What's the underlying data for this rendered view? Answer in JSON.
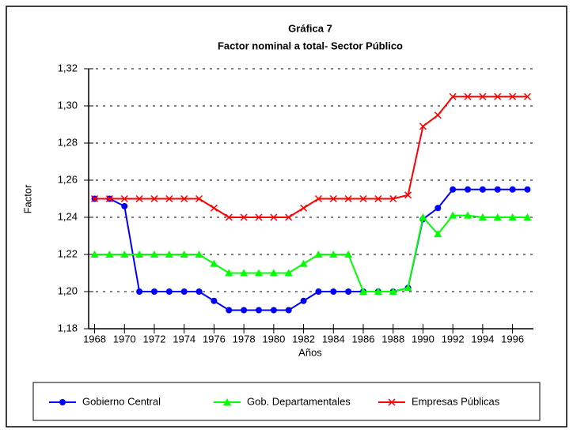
{
  "chart_data": {
    "type": "line",
    "title": "Gráfica 7",
    "subtitle": "Factor nominal a total- Sector Público",
    "y_label": "Factor",
    "x_label": "Años",
    "x": [
      1968,
      1969,
      1970,
      1971,
      1972,
      1973,
      1974,
      1975,
      1976,
      1977,
      1978,
      1979,
      1980,
      1981,
      1982,
      1983,
      1984,
      1985,
      1986,
      1987,
      1988,
      1989,
      1990,
      1991,
      1992,
      1993,
      1994,
      1995,
      1996,
      1997
    ],
    "series": [
      {
        "name": "Gobierno Central",
        "color": "#0000ff",
        "marker": "circle",
        "values": [
          1.25,
          1.25,
          1.246,
          1.2,
          1.2,
          1.2,
          1.2,
          1.2,
          1.195,
          1.19,
          1.19,
          1.19,
          1.19,
          1.19,
          1.195,
          1.2,
          1.2,
          1.2,
          1.2,
          1.2,
          1.2,
          1.202,
          1.239,
          1.245,
          1.255,
          1.255,
          1.255,
          1.255,
          1.255,
          1.255
        ]
      },
      {
        "name": "Gob. Departamentales",
        "color": "#00ff00",
        "marker": "triangle",
        "values": [
          1.22,
          1.22,
          1.22,
          1.22,
          1.22,
          1.22,
          1.22,
          1.22,
          1.215,
          1.21,
          1.21,
          1.21,
          1.21,
          1.21,
          1.215,
          1.22,
          1.22,
          1.22,
          1.2,
          1.2,
          1.2,
          1.202,
          1.24,
          1.231,
          1.241,
          1.241,
          1.24,
          1.24,
          1.24,
          1.24
        ]
      },
      {
        "name": "Empresas Públicas",
        "color": "#ff0000",
        "marker": "x",
        "values": [
          1.25,
          1.25,
          1.25,
          1.25,
          1.25,
          1.25,
          1.25,
          1.25,
          1.245,
          1.24,
          1.24,
          1.24,
          1.24,
          1.24,
          1.245,
          1.25,
          1.25,
          1.25,
          1.25,
          1.25,
          1.25,
          1.252,
          1.289,
          1.295,
          1.305,
          1.305,
          1.305,
          1.305,
          1.305,
          1.305
        ]
      }
    ],
    "xlim": [
      1967.6,
      1997.4
    ],
    "xticks": [
      1968,
      1970,
      1972,
      1974,
      1976,
      1978,
      1980,
      1982,
      1984,
      1986,
      1988,
      1990,
      1992,
      1994,
      1996
    ],
    "ylim": [
      1.18,
      1.32
    ],
    "yticks": [
      {
        "value": 1.18,
        "label": "1,18"
      },
      {
        "value": 1.2,
        "label": "1,20"
      },
      {
        "value": 1.22,
        "label": "1,22"
      },
      {
        "value": 1.24,
        "label": "1,24"
      },
      {
        "value": 1.26,
        "label": "1,26"
      },
      {
        "value": 1.28,
        "label": "1,28"
      },
      {
        "value": 1.3,
        "label": "1,30"
      },
      {
        "value": 1.32,
        "label": "1,32"
      }
    ],
    "grid": true,
    "legend": "bottom"
  }
}
